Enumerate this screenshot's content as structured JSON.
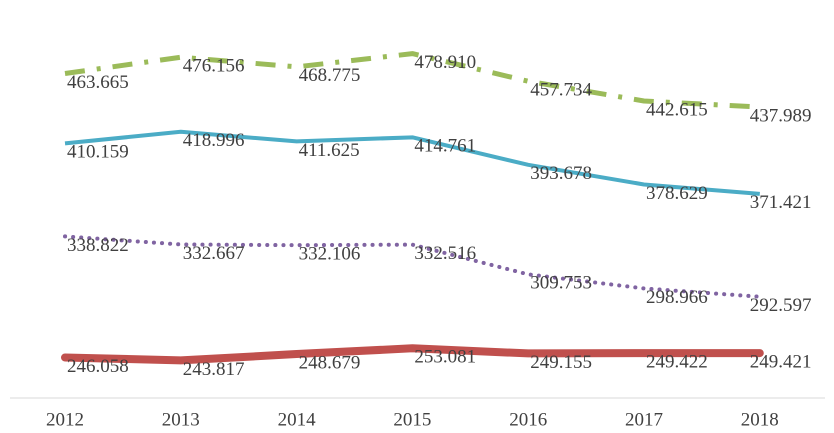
{
  "chart_data": {
    "type": "line",
    "categories": [
      "2012",
      "2013",
      "2014",
      "2015",
      "2016",
      "2017",
      "2018"
    ],
    "ylim": [
      215,
      520
    ],
    "series": [
      {
        "color": "#9bbb59",
        "style": "dashdot",
        "values": [
          463.665,
          476.156,
          468.775,
          478.91,
          457.734,
          442.615,
          437.989
        ],
        "value_labels": [
          "463.665",
          "476.156",
          "468.775",
          "478.910",
          "457.734",
          "442.615",
          "437.989"
        ]
      },
      {
        "color": "#4bacc6",
        "style": "solid",
        "values": [
          410.159,
          418.996,
          411.625,
          414.761,
          393.678,
          378.629,
          371.421
        ]
      },
      {
        "color": "#8064a2",
        "style": "dotted",
        "values": [
          338.822,
          332.667,
          332.106,
          332.516,
          309.753,
          298.966,
          292.597
        ]
      },
      {
        "color": "#c0504d",
        "style": "thick",
        "values": [
          246.058,
          243.817,
          248.679,
          253.081,
          249.155,
          249.422,
          249.421
        ]
      }
    ]
  }
}
